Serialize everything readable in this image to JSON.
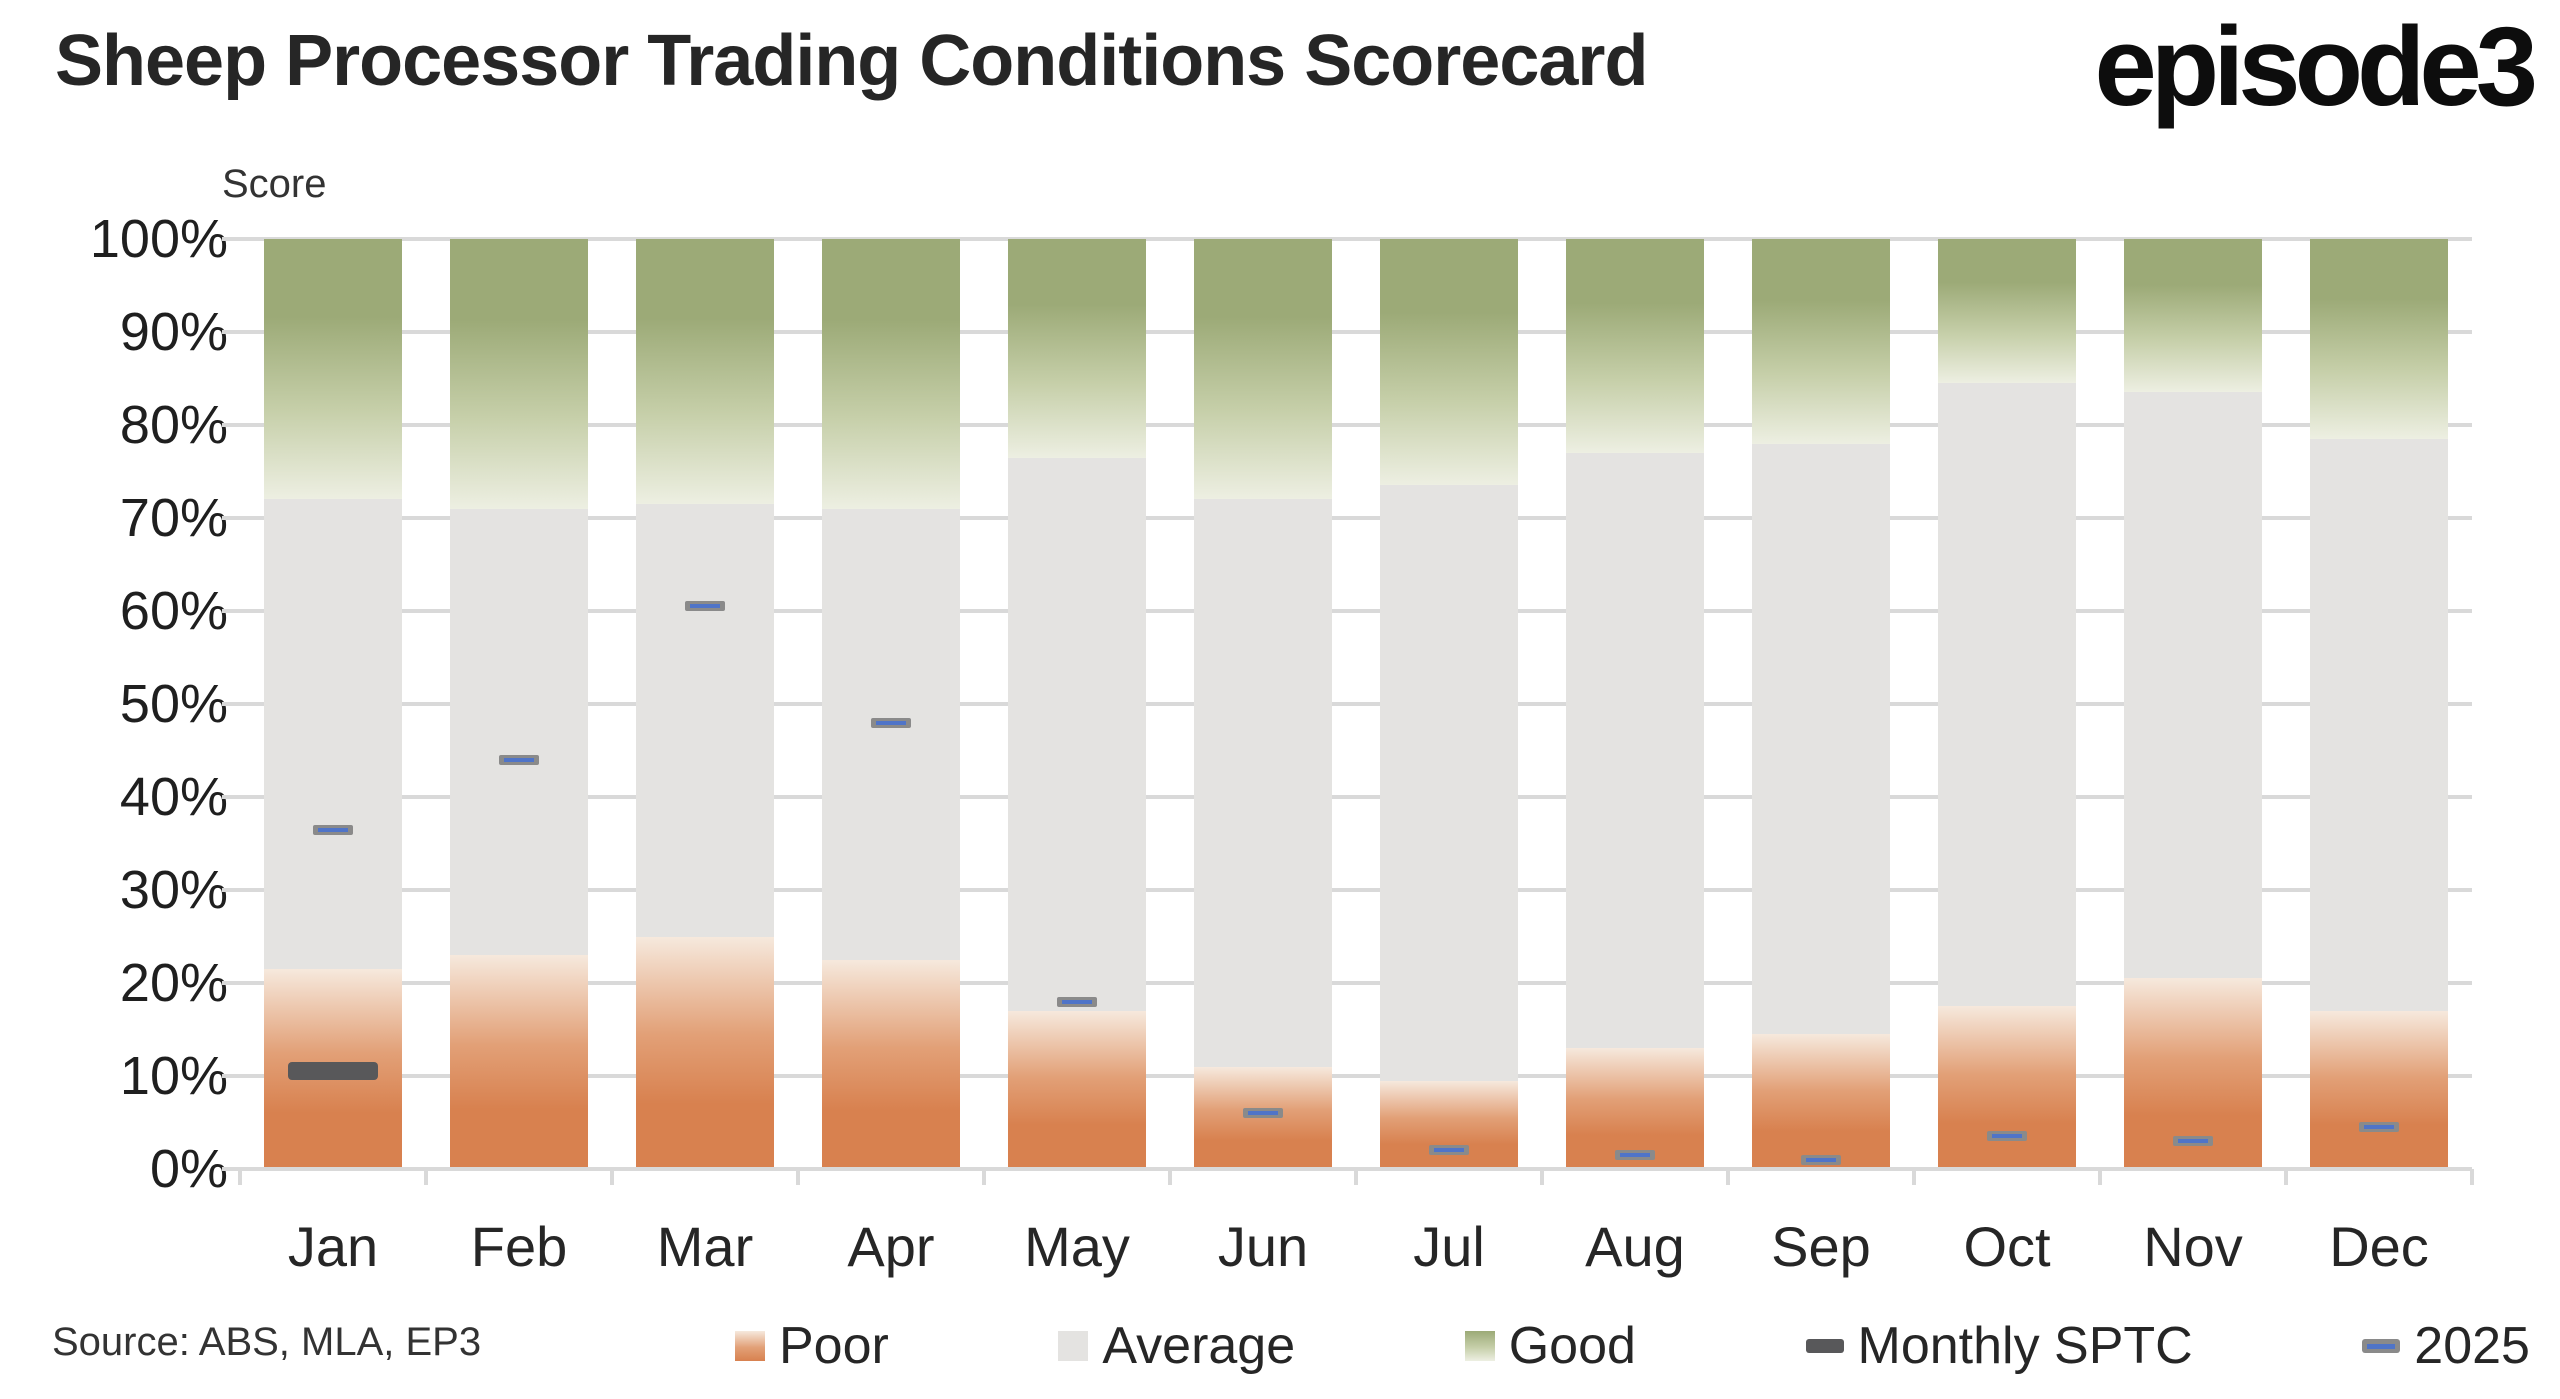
{
  "title": "Sheep Processor Trading Conditions Scorecard",
  "logo": {
    "text": "episode3"
  },
  "source": "Source: ABS, MLA, EP3",
  "y_axis": {
    "title": "Score",
    "tick_labels": [
      "0%",
      "10%",
      "20%",
      "30%",
      "40%",
      "50%",
      "60%",
      "70%",
      "80%",
      "90%",
      "100%"
    ]
  },
  "legend": {
    "items": [
      {
        "label": "Poor",
        "swatch": "gradient-poor"
      },
      {
        "label": "Average",
        "swatch": "solid-average"
      },
      {
        "label": "Good",
        "swatch": "gradient-good"
      },
      {
        "label": "Monthly SPTC",
        "swatch": "dash-dark"
      },
      {
        "label": "2025",
        "swatch": "dash-blue"
      }
    ]
  },
  "colors": {
    "poor": "#D8814F",
    "poor_mid": "#E2A077",
    "poor_light": "#F6E9DD",
    "average": "#E4E3E1",
    "good": "#9CAA77",
    "good_mid": "#C6CFA9",
    "good_light": "#EDEFE2",
    "sptc_dash": "#58585A",
    "dash_2025_border": "#8A8A8A",
    "dash_2025_fill": "#4F74C8",
    "gridline": "#D9D9D9",
    "text": "#262626"
  },
  "chart_data": {
    "type": "bar",
    "stacked": true,
    "title": "Sheep Processor Trading Conditions Scorecard",
    "ylabel": "Score",
    "ylim": [
      0,
      100
    ],
    "y_tick_step": 10,
    "y_tick_format": "percent",
    "grid": true,
    "legend_position": "bottom",
    "categories": [
      "Jan",
      "Feb",
      "Mar",
      "Apr",
      "May",
      "Jun",
      "Jul",
      "Aug",
      "Sep",
      "Oct",
      "Nov",
      "Dec"
    ],
    "series": [
      {
        "name": "Poor",
        "role": "band",
        "values": [
          21.5,
          23,
          25,
          22.5,
          17,
          11,
          9.5,
          13,
          14.5,
          17.5,
          20.5,
          17
        ]
      },
      {
        "name": "Average",
        "role": "band",
        "values": [
          50.5,
          48,
          46.5,
          48.5,
          59.5,
          61,
          64,
          64,
          63.5,
          67,
          63,
          61.5
        ]
      },
      {
        "name": "Good",
        "role": "band",
        "values": [
          28,
          29,
          28.5,
          29,
          23.5,
          28,
          26.5,
          23,
          22,
          15.5,
          16.5,
          21.5
        ]
      },
      {
        "name": "Monthly SPTC",
        "role": "marker",
        "marker_style": "thick-dark",
        "values": [
          10.5,
          null,
          null,
          null,
          null,
          null,
          null,
          null,
          null,
          null,
          null,
          null
        ]
      },
      {
        "name": "2025",
        "role": "marker",
        "marker_style": "outlined-blue",
        "values": [
          36.5,
          44,
          60.5,
          48,
          18,
          6,
          2,
          1.5,
          1,
          3.5,
          3,
          4.5
        ]
      }
    ]
  }
}
